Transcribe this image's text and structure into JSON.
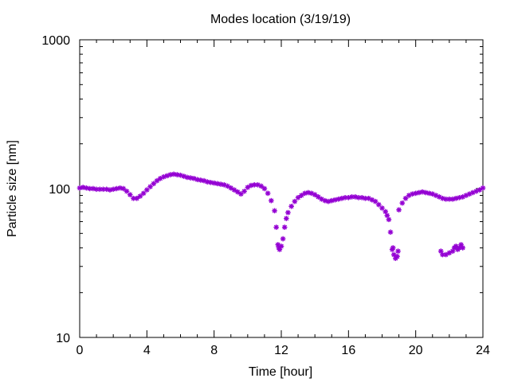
{
  "chart_data": {
    "type": "scatter",
    "title": "Modes location (3/19/19)",
    "xlabel": "Time [hour]",
    "ylabel": "Particle size [nm]",
    "xlim": [
      0,
      24
    ],
    "ylim": [
      10,
      1000
    ],
    "y_scale": "log",
    "grid": false,
    "legend": "none",
    "marker_color": "#9400d3",
    "marker": "asterisk",
    "x_ticks": [
      "0",
      "4",
      "8",
      "12",
      "16",
      "20",
      "24"
    ],
    "y_ticks": [
      "10",
      "100",
      "1000"
    ],
    "series": [
      {
        "points": [
          [
            0.0,
            101
          ],
          [
            0.2,
            102
          ],
          [
            0.4,
            101
          ],
          [
            0.6,
            100
          ],
          [
            0.8,
            100
          ],
          [
            1.0,
            99
          ],
          [
            1.2,
            99
          ],
          [
            1.4,
            99
          ],
          [
            1.6,
            99
          ],
          [
            1.8,
            98
          ],
          [
            2.0,
            99
          ],
          [
            2.2,
            100
          ],
          [
            2.4,
            101
          ],
          [
            2.6,
            100
          ],
          [
            2.8,
            96
          ],
          [
            3.0,
            91
          ],
          [
            3.2,
            86
          ],
          [
            3.4,
            86
          ],
          [
            3.6,
            89
          ],
          [
            3.8,
            93
          ],
          [
            4.0,
            98
          ],
          [
            4.2,
            103
          ],
          [
            4.4,
            108
          ],
          [
            4.6,
            113
          ],
          [
            4.8,
            117
          ],
          [
            5.0,
            120
          ],
          [
            5.2,
            122
          ],
          [
            5.4,
            124
          ],
          [
            5.6,
            125
          ],
          [
            5.8,
            124
          ],
          [
            6.0,
            123
          ],
          [
            6.2,
            121
          ],
          [
            6.4,
            119
          ],
          [
            6.6,
            118
          ],
          [
            6.8,
            117
          ],
          [
            7.0,
            115
          ],
          [
            7.2,
            114
          ],
          [
            7.4,
            113
          ],
          [
            7.6,
            111
          ],
          [
            7.8,
            110
          ],
          [
            8.0,
            109
          ],
          [
            8.2,
            108
          ],
          [
            8.4,
            107
          ],
          [
            8.6,
            106
          ],
          [
            8.8,
            104
          ],
          [
            9.0,
            101
          ],
          [
            9.2,
            98
          ],
          [
            9.4,
            95
          ],
          [
            9.6,
            92
          ],
          [
            9.8,
            96
          ],
          [
            10.0,
            102
          ],
          [
            10.2,
            105
          ],
          [
            10.4,
            106
          ],
          [
            10.6,
            106
          ],
          [
            10.8,
            104
          ],
          [
            11.0,
            100
          ],
          [
            11.2,
            93
          ],
          [
            11.4,
            83
          ],
          [
            11.6,
            71
          ],
          [
            11.7,
            55
          ],
          [
            11.8,
            42
          ],
          [
            11.85,
            40
          ],
          [
            11.9,
            39
          ],
          [
            12.0,
            41
          ],
          [
            12.1,
            46
          ],
          [
            12.2,
            55
          ],
          [
            12.3,
            63
          ],
          [
            12.4,
            69
          ],
          [
            12.6,
            76
          ],
          [
            12.8,
            82
          ],
          [
            13.0,
            87
          ],
          [
            13.2,
            90
          ],
          [
            13.4,
            93
          ],
          [
            13.6,
            94
          ],
          [
            13.8,
            93
          ],
          [
            14.0,
            91
          ],
          [
            14.2,
            88
          ],
          [
            14.4,
            85
          ],
          [
            14.6,
            83
          ],
          [
            14.8,
            82
          ],
          [
            15.0,
            83
          ],
          [
            15.2,
            84
          ],
          [
            15.4,
            85
          ],
          [
            15.6,
            86
          ],
          [
            15.8,
            87
          ],
          [
            16.0,
            87
          ],
          [
            16.2,
            88
          ],
          [
            16.4,
            88
          ],
          [
            16.6,
            87
          ],
          [
            16.8,
            87
          ],
          [
            17.0,
            86
          ],
          [
            17.2,
            86
          ],
          [
            17.4,
            84
          ],
          [
            17.6,
            82
          ],
          [
            17.8,
            78
          ],
          [
            18.0,
            74
          ],
          [
            18.2,
            70
          ],
          [
            18.3,
            66
          ],
          [
            18.4,
            62
          ],
          [
            18.5,
            51
          ],
          [
            18.6,
            39
          ],
          [
            18.65,
            40
          ],
          [
            18.7,
            36
          ],
          [
            18.8,
            34
          ],
          [
            18.9,
            35
          ],
          [
            18.95,
            38
          ],
          [
            19.0,
            72
          ],
          [
            19.2,
            80
          ],
          [
            19.4,
            86
          ],
          [
            19.6,
            90
          ],
          [
            19.8,
            92
          ],
          [
            20.0,
            93
          ],
          [
            20.2,
            94
          ],
          [
            20.4,
            95
          ],
          [
            20.6,
            94
          ],
          [
            20.8,
            93
          ],
          [
            21.0,
            92
          ],
          [
            21.2,
            90
          ],
          [
            21.4,
            88
          ],
          [
            21.6,
            86
          ],
          [
            21.8,
            85
          ],
          [
            22.0,
            85
          ],
          [
            22.2,
            85
          ],
          [
            22.4,
            86
          ],
          [
            22.6,
            87
          ],
          [
            22.8,
            88
          ],
          [
            23.0,
            90
          ],
          [
            23.2,
            92
          ],
          [
            23.4,
            94
          ],
          [
            23.6,
            96
          ],
          [
            23.8,
            98
          ],
          [
            24.0,
            101
          ],
          [
            21.5,
            38
          ],
          [
            21.6,
            36
          ],
          [
            21.8,
            36
          ],
          [
            22.0,
            37
          ],
          [
            22.2,
            38
          ],
          [
            22.3,
            40
          ],
          [
            22.4,
            41
          ],
          [
            22.5,
            39
          ],
          [
            22.6,
            40
          ],
          [
            22.7,
            42
          ],
          [
            22.8,
            40
          ]
        ]
      }
    ]
  }
}
